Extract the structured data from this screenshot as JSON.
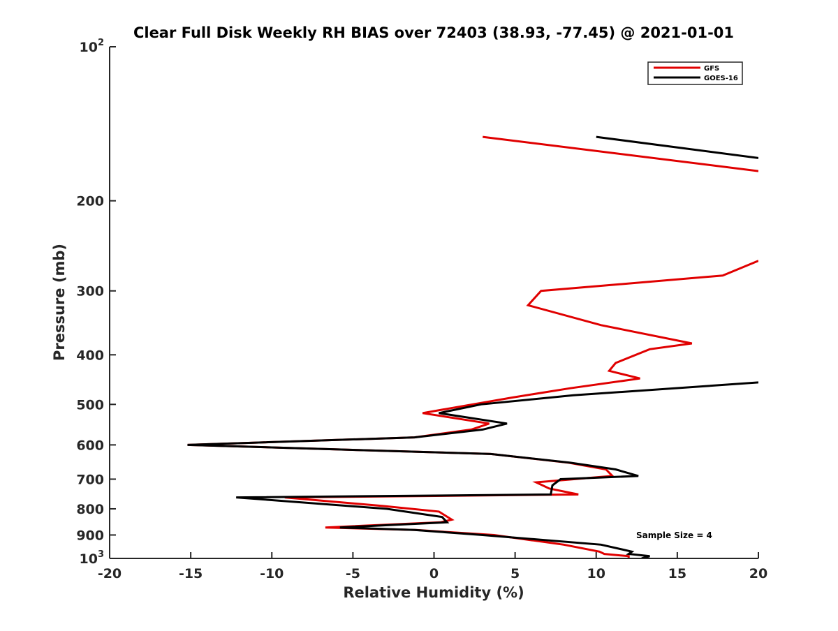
{
  "chart_data": {
    "type": "line",
    "title": "Clear Full Disk Weekly RH BIAS over 72403 (38.93, -77.45) @ 2021-01-01",
    "xlabel": "Relative Humidity (%)",
    "ylabel": "Pressure (mb)",
    "xlim": [
      -20,
      20
    ],
    "ylim": [
      100,
      1000
    ],
    "y_scale": "log",
    "y_reversed": true,
    "x_ticks": [
      -20,
      -15,
      -10,
      -5,
      0,
      5,
      10,
      15,
      20
    ],
    "x_tick_labels": [
      "-20",
      "-15",
      "-10",
      "-5",
      "0",
      "5",
      "10",
      "15",
      "20"
    ],
    "y_ticks": [
      100,
      200,
      300,
      400,
      500,
      600,
      700,
      800,
      900,
      1000
    ],
    "y_tick_labels": [
      {
        "base": "10",
        "exp": "2"
      },
      {
        "base": "200",
        "exp": ""
      },
      {
        "base": "300",
        "exp": ""
      },
      {
        "base": "400",
        "exp": ""
      },
      {
        "base": "500",
        "exp": ""
      },
      {
        "base": "600",
        "exp": ""
      },
      {
        "base": "700",
        "exp": ""
      },
      {
        "base": "800",
        "exp": ""
      },
      {
        "base": "900",
        "exp": ""
      },
      {
        "base": "10",
        "exp": "3"
      }
    ],
    "grid": false,
    "legend_position": "top-right",
    "annotation": "Sample Size = 4",
    "series": [
      {
        "name": "GFS",
        "color": "#e00000",
        "segments": [
          [
            [
              3,
              150
            ],
            [
              20,
              175
            ]
          ],
          [
            [
              20,
              262
            ],
            [
              17.8,
              280
            ],
            [
              6.6,
              300
            ],
            [
              5.8,
              320
            ],
            [
              10.3,
              350
            ],
            [
              15.9,
              380
            ],
            [
              13.3,
              390
            ],
            [
              11.2,
              415
            ],
            [
              10.8,
              430
            ],
            [
              12.7,
              445
            ],
            [
              8.4,
              465
            ],
            [
              4.8,
              485
            ],
            [
              -0.7,
              520
            ],
            [
              3.4,
              545
            ],
            [
              2.3,
              560
            ],
            [
              -1.2,
              580
            ],
            [
              -15.2,
              600
            ],
            [
              3.5,
              625
            ],
            [
              8.3,
              650
            ],
            [
              10.6,
              670
            ],
            [
              11.0,
              690
            ],
            [
              6.3,
              710
            ],
            [
              7.1,
              730
            ],
            [
              8.9,
              750
            ],
            [
              -9.2,
              760
            ],
            [
              -3.1,
              790
            ],
            [
              0.3,
              810
            ],
            [
              1.1,
              840
            ],
            [
              0.4,
              850
            ],
            [
              -6.7,
              870
            ],
            [
              -1.1,
              880
            ],
            [
              3.7,
              900
            ],
            [
              8.0,
              940
            ],
            [
              10.2,
              970
            ],
            [
              10.5,
              980
            ],
            [
              12.0,
              990
            ],
            [
              12.0,
              1000
            ]
          ]
        ]
      },
      {
        "name": "GOES-16",
        "color": "#000000",
        "segments": [
          [
            [
              10.0,
              150
            ],
            [
              20,
              165
            ]
          ],
          [
            [
              20,
              453
            ],
            [
              8.6,
              480
            ],
            [
              2.9,
              500
            ],
            [
              0.3,
              520
            ],
            [
              4.5,
              545
            ],
            [
              3.0,
              560
            ],
            [
              -1.2,
              580
            ],
            [
              -15.2,
              600
            ],
            [
              3.5,
              625
            ],
            [
              8.4,
              650
            ],
            [
              11.2,
              670
            ],
            [
              12.6,
              690
            ],
            [
              7.8,
              700
            ],
            [
              7.3,
              720
            ],
            [
              7.2,
              750
            ],
            [
              -12.2,
              760
            ],
            [
              -2.9,
              800
            ],
            [
              0.5,
              830
            ],
            [
              0.8,
              850
            ],
            [
              -5.8,
              870
            ],
            [
              -1.2,
              880
            ],
            [
              3.0,
              900
            ],
            [
              10.3,
              940
            ],
            [
              12.2,
              970
            ],
            [
              12.0,
              980
            ],
            [
              13.3,
              990
            ],
            [
              12.8,
              1000
            ]
          ]
        ]
      }
    ]
  }
}
